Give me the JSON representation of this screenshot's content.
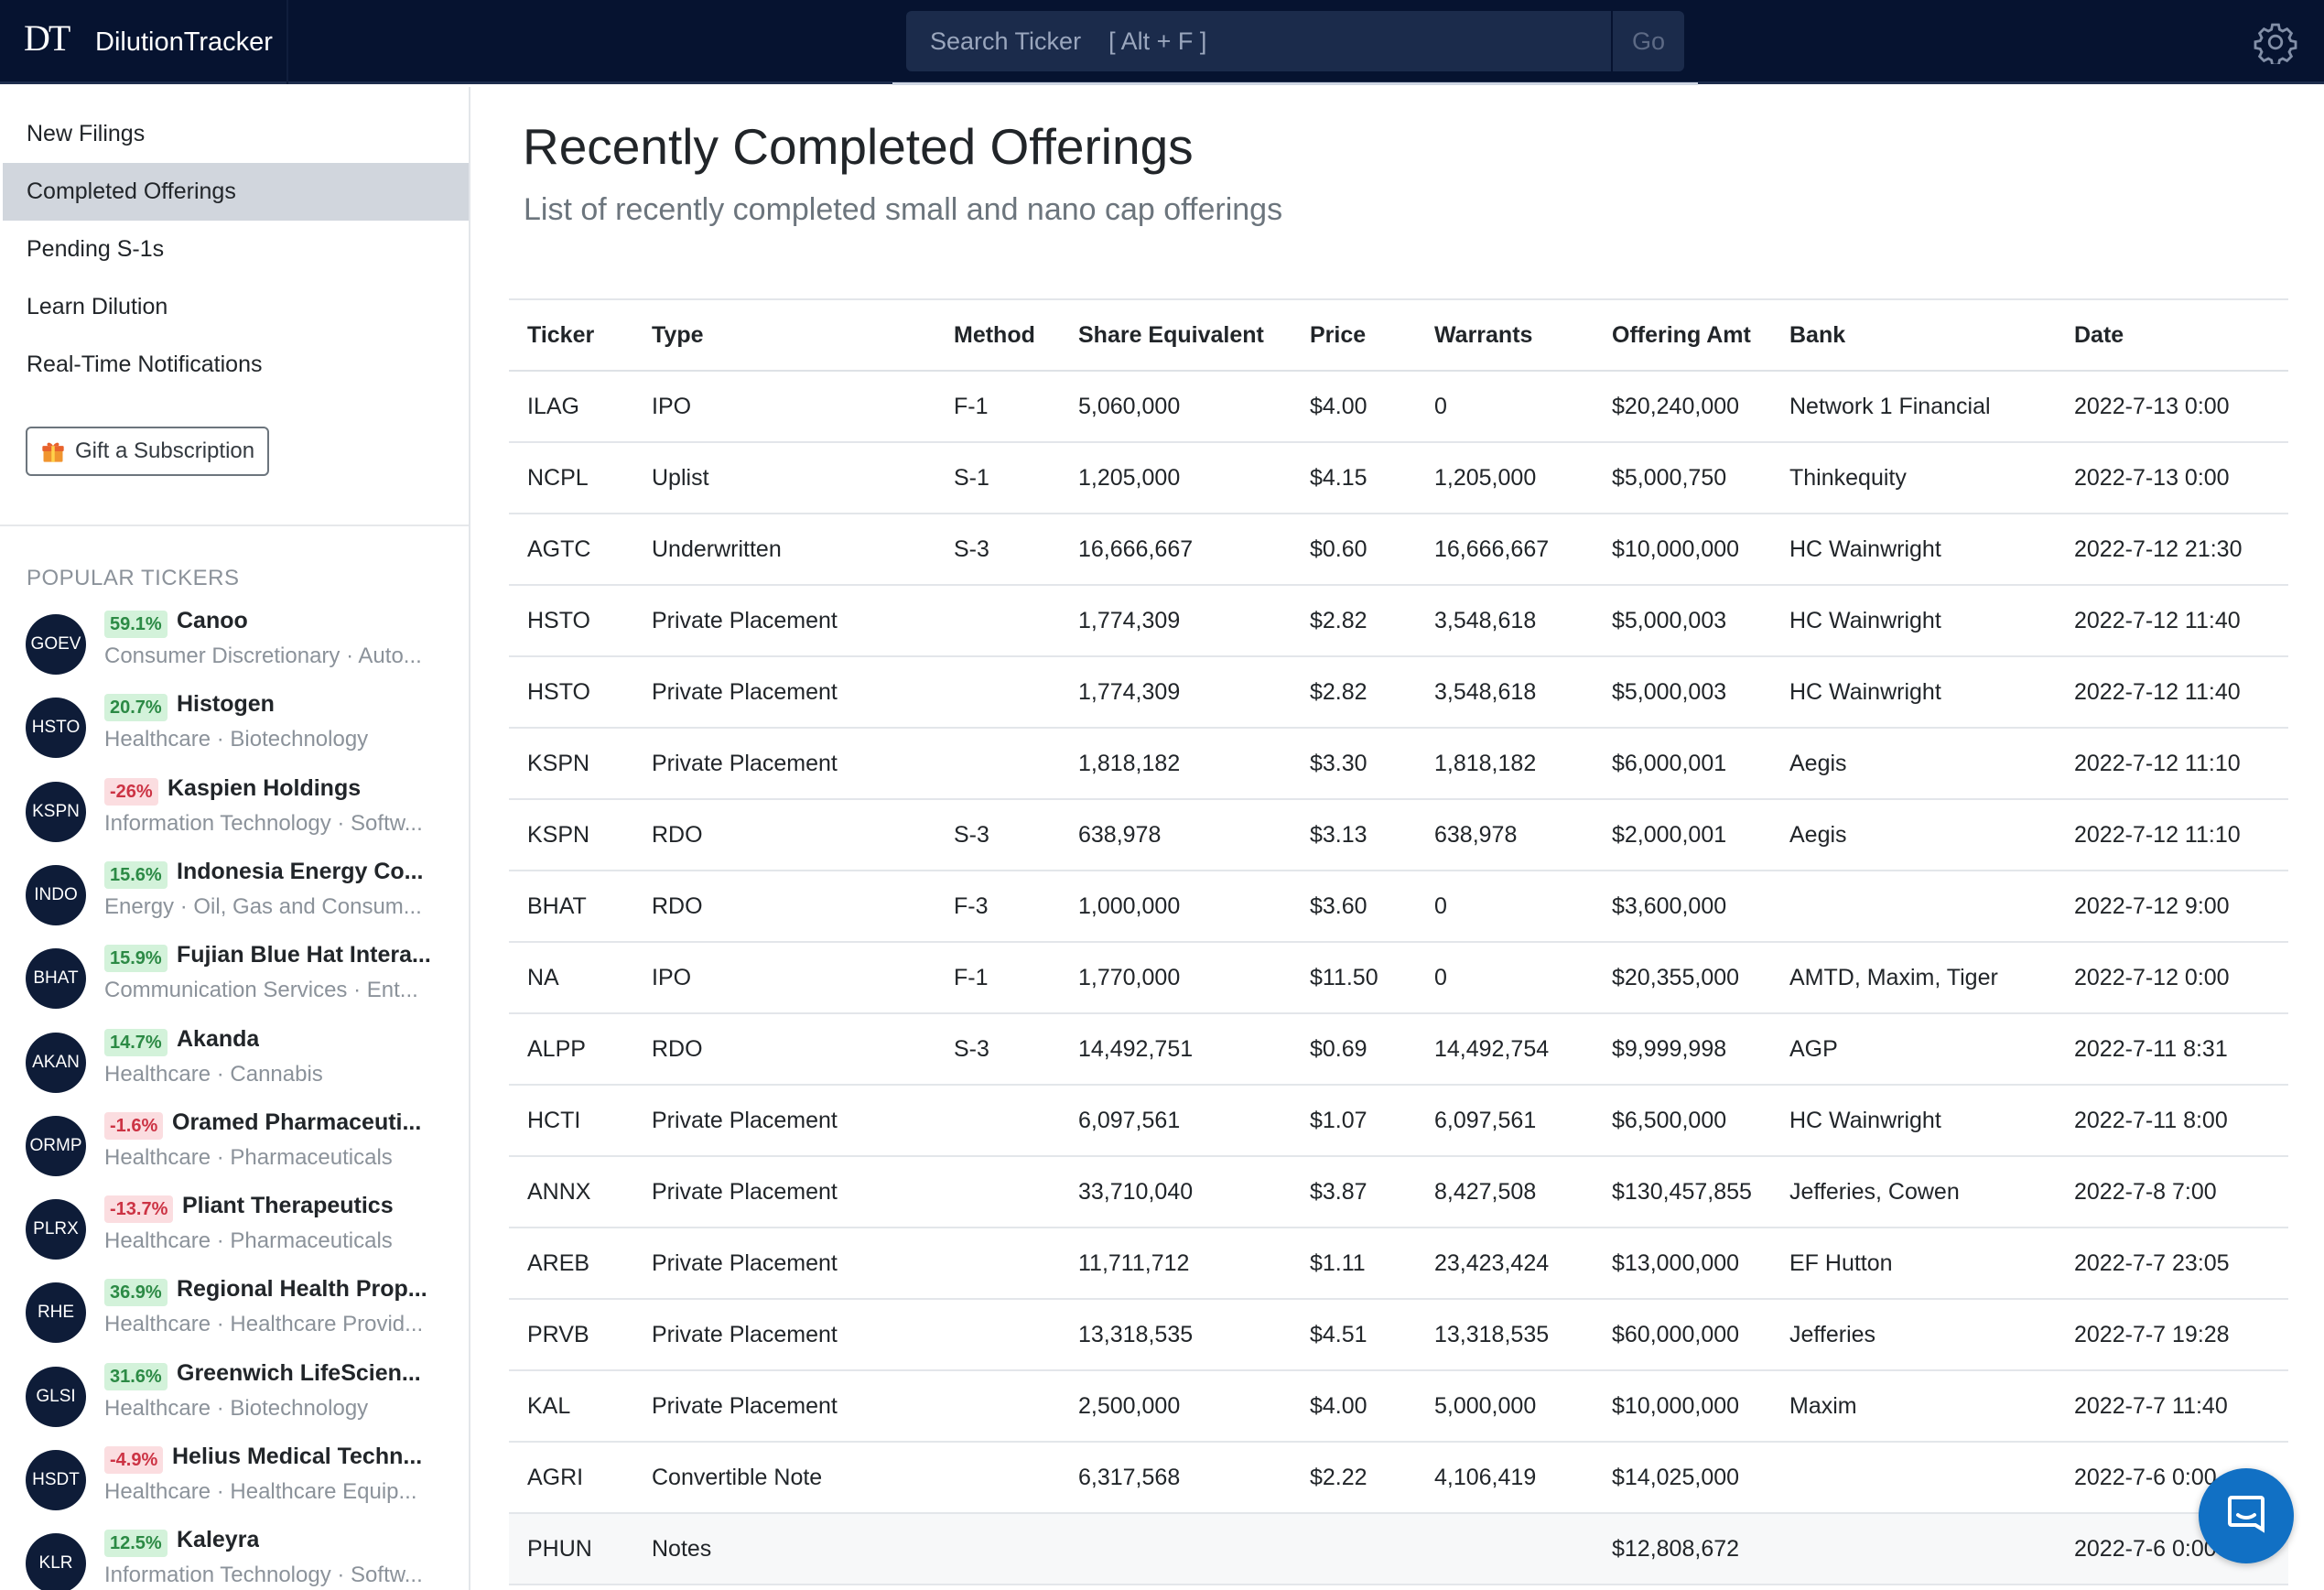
{
  "header": {
    "logo_text": "DT",
    "brand": "DilutionTracker",
    "search_placeholder": "Search Ticker    [ Alt + F ]",
    "go_label": "Go",
    "settings_icon": "gear-icon"
  },
  "sidebar": {
    "nav": [
      {
        "label": "New Filings",
        "active": false
      },
      {
        "label": "Completed Offerings",
        "active": true
      },
      {
        "label": "Pending S-1s",
        "active": false
      },
      {
        "label": "Learn Dilution",
        "active": false
      },
      {
        "label": "Real-Time Notifications",
        "active": false
      }
    ],
    "gift_label": "Gift a Subscription",
    "gift_icon": "gift-icon",
    "popular_heading": "POPULAR TICKERS",
    "tickers": [
      {
        "symbol": "GOEV",
        "pct": "59.1%",
        "dir": "up",
        "name": "Canoo",
        "sector": "Consumer Discretionary · Auto..."
      },
      {
        "symbol": "HSTO",
        "pct": "20.7%",
        "dir": "up",
        "name": "Histogen",
        "sector": "Healthcare · Biotechnology"
      },
      {
        "symbol": "KSPN",
        "pct": "-26%",
        "dir": "down",
        "name": "Kaspien Holdings",
        "sector": "Information Technology · Softw..."
      },
      {
        "symbol": "INDO",
        "pct": "15.6%",
        "dir": "up",
        "name": "Indonesia Energy Co...",
        "sector": "Energy · Oil, Gas and Consum..."
      },
      {
        "symbol": "BHAT",
        "pct": "15.9%",
        "dir": "up",
        "name": "Fujian Blue Hat Intera...",
        "sector": "Communication Services · Ent..."
      },
      {
        "symbol": "AKAN",
        "pct": "14.7%",
        "dir": "up",
        "name": "Akanda",
        "sector": "Healthcare · Cannabis"
      },
      {
        "symbol": "ORMP",
        "pct": "-1.6%",
        "dir": "down",
        "name": "Oramed Pharmaceuti...",
        "sector": "Healthcare · Pharmaceuticals"
      },
      {
        "symbol": "PLRX",
        "pct": "-13.7%",
        "dir": "down",
        "name": "Pliant Therapeutics",
        "sector": "Healthcare · Pharmaceuticals"
      },
      {
        "symbol": "RHE",
        "pct": "36.9%",
        "dir": "up",
        "name": "Regional Health Prop...",
        "sector": "Healthcare · Healthcare Provid..."
      },
      {
        "symbol": "GLSI",
        "pct": "31.6%",
        "dir": "up",
        "name": "Greenwich LifeScien...",
        "sector": "Healthcare · Biotechnology"
      },
      {
        "symbol": "HSDT",
        "pct": "-4.9%",
        "dir": "down",
        "name": "Helius Medical Techn...",
        "sector": "Healthcare · Healthcare Equip..."
      },
      {
        "symbol": "KLR",
        "pct": "12.5%",
        "dir": "up",
        "name": "Kaleyra",
        "sector": "Information Technology · Softw..."
      }
    ]
  },
  "main": {
    "title": "Recently Completed Offerings",
    "subtitle": "List of recently completed small and nano cap offerings",
    "columns": [
      "Ticker",
      "Type",
      "Method",
      "Share Equivalent",
      "Price",
      "Warrants",
      "Offering Amt",
      "Bank",
      "Date"
    ],
    "rows": [
      [
        "ILAG",
        "IPO",
        "F-1",
        "5,060,000",
        "$4.00",
        "0",
        "$20,240,000",
        "Network 1 Financial",
        "2022-7-13 0:00"
      ],
      [
        "NCPL",
        "Uplist",
        "S-1",
        "1,205,000",
        "$4.15",
        "1,205,000",
        "$5,000,750",
        "Thinkequity",
        "2022-7-13 0:00"
      ],
      [
        "AGTC",
        "Underwritten",
        "S-3",
        "16,666,667",
        "$0.60",
        "16,666,667",
        "$10,000,000",
        "HC Wainwright",
        "2022-7-12 21:30"
      ],
      [
        "HSTO",
        "Private Placement",
        "",
        "1,774,309",
        "$2.82",
        "3,548,618",
        "$5,000,003",
        "HC Wainwright",
        "2022-7-12 11:40"
      ],
      [
        "HSTO",
        "Private Placement",
        "",
        "1,774,309",
        "$2.82",
        "3,548,618",
        "$5,000,003",
        "HC Wainwright",
        "2022-7-12 11:40"
      ],
      [
        "KSPN",
        "Private Placement",
        "",
        "1,818,182",
        "$3.30",
        "1,818,182",
        "$6,000,001",
        "Aegis",
        "2022-7-12 11:10"
      ],
      [
        "KSPN",
        "RDO",
        "S-3",
        "638,978",
        "$3.13",
        "638,978",
        "$2,000,001",
        "Aegis",
        "2022-7-12 11:10"
      ],
      [
        "BHAT",
        "RDO",
        "F-3",
        "1,000,000",
        "$3.60",
        "0",
        "$3,600,000",
        "",
        "2022-7-12 9:00"
      ],
      [
        "NA",
        "IPO",
        "F-1",
        "1,770,000",
        "$11.50",
        "0",
        "$20,355,000",
        "AMTD, Maxim, Tiger",
        "2022-7-12 0:00"
      ],
      [
        "ALPP",
        "RDO",
        "S-3",
        "14,492,751",
        "$0.69",
        "14,492,754",
        "$9,999,998",
        "AGP",
        "2022-7-11 8:31"
      ],
      [
        "HCTI",
        "Private Placement",
        "",
        "6,097,561",
        "$1.07",
        "6,097,561",
        "$6,500,000",
        "HC Wainwright",
        "2022-7-11 8:00"
      ],
      [
        "ANNX",
        "Private Placement",
        "",
        "33,710,040",
        "$3.87",
        "8,427,508",
        "$130,457,855",
        "Jefferies, Cowen",
        "2022-7-8 7:00"
      ],
      [
        "AREB",
        "Private Placement",
        "",
        "11,711,712",
        "$1.11",
        "23,423,424",
        "$13,000,000",
        "EF Hutton",
        "2022-7-7 23:05"
      ],
      [
        "PRVB",
        "Private Placement",
        "",
        "13,318,535",
        "$4.51",
        "13,318,535",
        "$60,000,000",
        "Jefferies",
        "2022-7-7 19:28"
      ],
      [
        "KAL",
        "Private Placement",
        "",
        "2,500,000",
        "$4.00",
        "5,000,000",
        "$10,000,000",
        "Maxim",
        "2022-7-7 11:40"
      ],
      [
        "AGRI",
        "Convertible Note",
        "",
        "6,317,568",
        "$2.22",
        "4,106,419",
        "$14,025,000",
        "",
        "2022-7-6 0:00"
      ],
      [
        "PHUN",
        "Notes",
        "",
        "",
        "",
        "",
        "$12,808,672",
        "",
        "2022-7-6 0:00"
      ]
    ],
    "shaded_row_index": 16
  },
  "chat_icon": "chat-icon",
  "colors": {
    "topbar": "#061330",
    "sidebar_active": "#d1d6dd",
    "badge_up_bg": "#d3f2da",
    "badge_up_text": "#2c8a45",
    "badge_down_bg": "#fbdde0",
    "badge_down_text": "#cc3344",
    "chat_button": "#1170c4"
  }
}
